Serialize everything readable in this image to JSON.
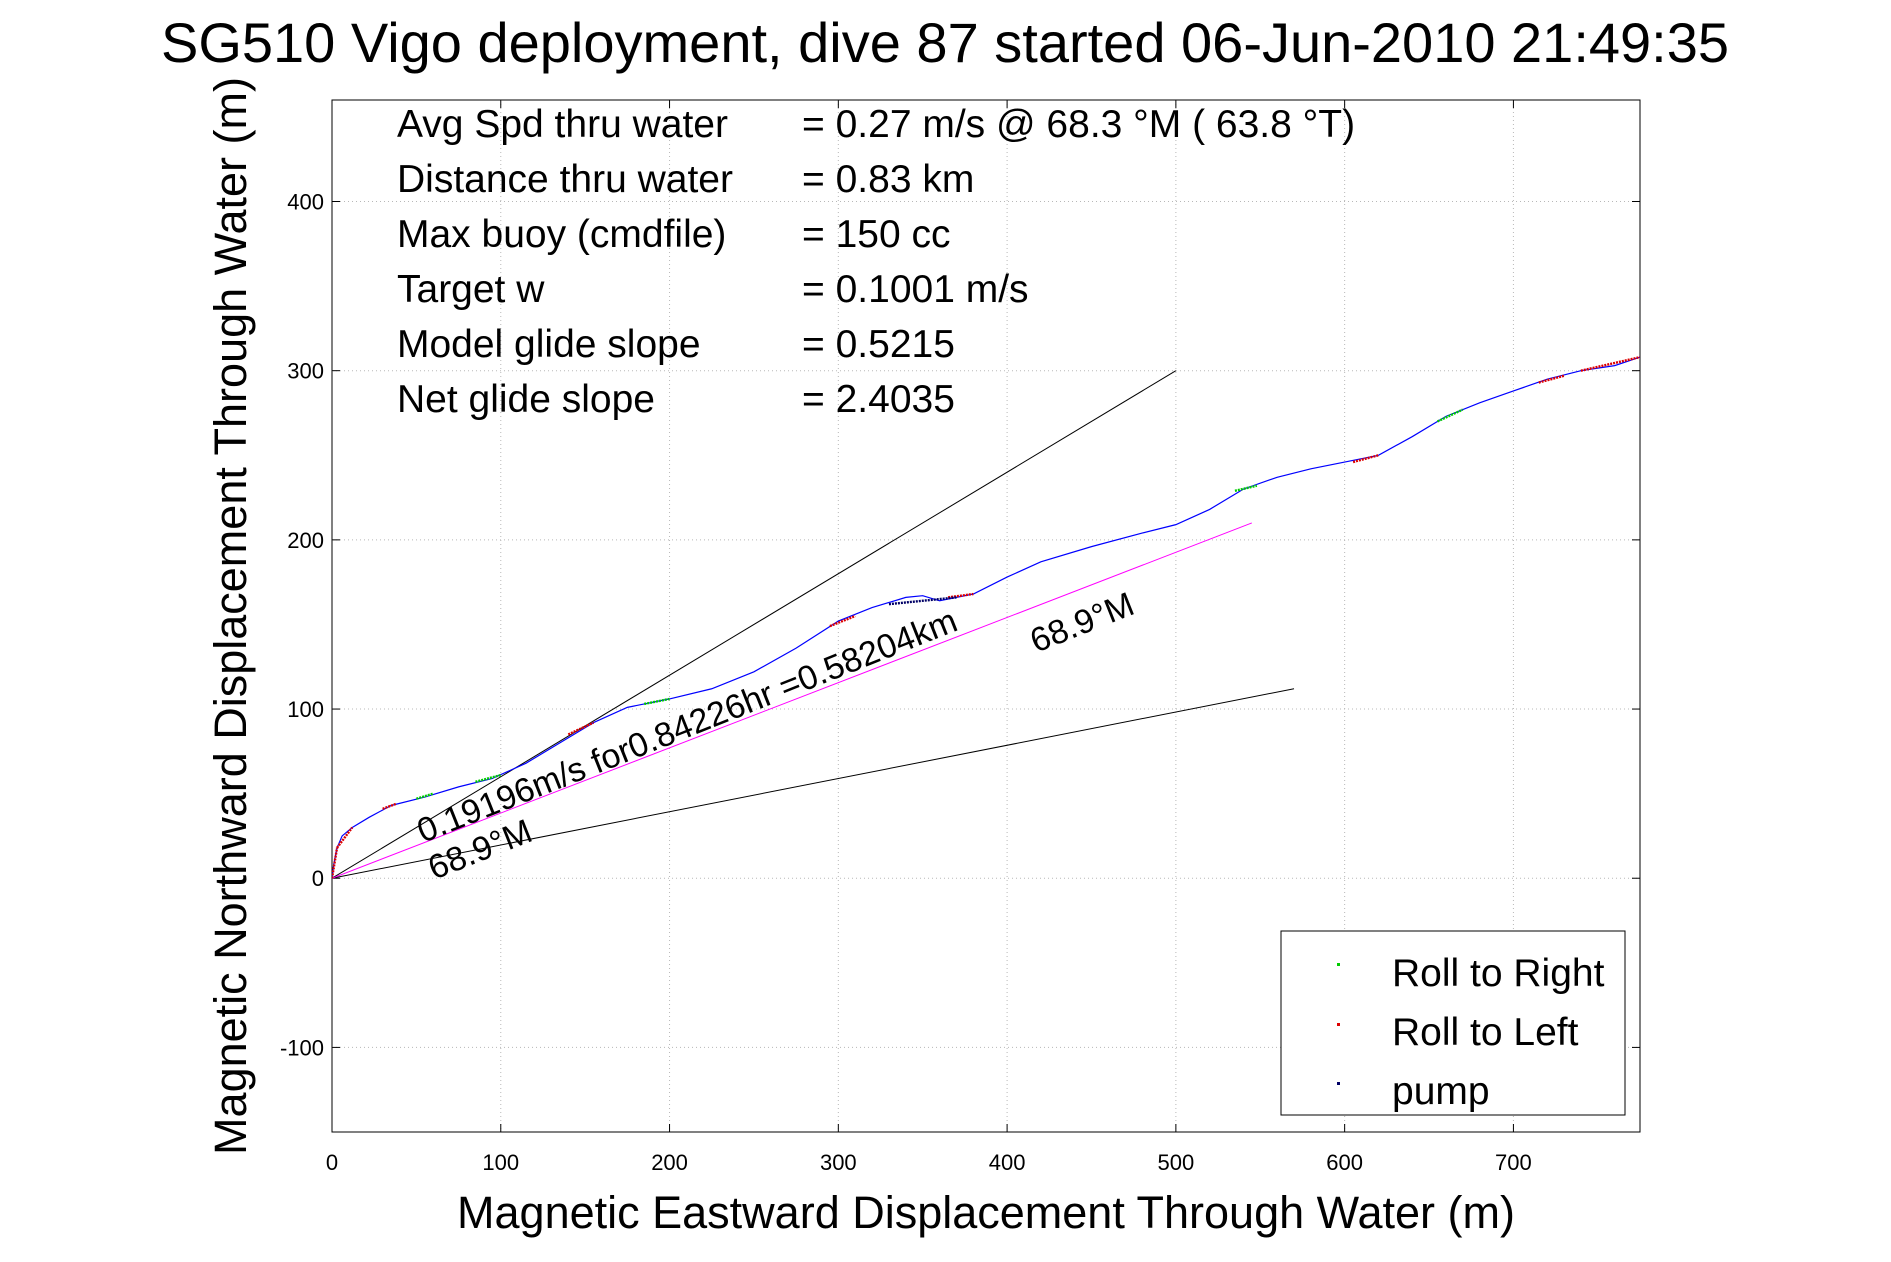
{
  "chart_data": {
    "type": "line",
    "title": "SG510 Vigo deployment, dive 87 started 06-Jun-2010 21:49:35",
    "xlabel": "Magnetic Eastward Displacement Through Water (m)",
    "ylabel": "Magnetic Northward Displacement Through Water (m)",
    "xlim": [
      0,
      775
    ],
    "ylim": [
      -150,
      460
    ],
    "xticks": [
      0,
      100,
      200,
      300,
      400,
      500,
      600,
      700
    ],
    "yticks": [
      -100,
      0,
      100,
      200,
      300,
      400
    ],
    "grid": true,
    "info_lines": [
      {
        "label": "Avg Spd thru water",
        "value": "=  0.27 m/s @  68.3 °M ( 63.8 °T)"
      },
      {
        "label": "Distance thru water",
        "value": "=  0.83 km"
      },
      {
        "label": "Max buoy (cmdfile)",
        "value": "= 150 cc"
      },
      {
        "label": "Target w",
        "value": "= 0.1001 m/s"
      },
      {
        "label": "Model glide slope",
        "value": "= 0.5215"
      },
      {
        "label": "Net glide slope",
        "value": "= 2.4035"
      }
    ],
    "annotations": {
      "current_text": "0.19196m/s for0.84226hr =0.58204km",
      "heading_upper": "68.9°M",
      "heading_lower": "68.9°M"
    },
    "legend": {
      "position": "bottom-right",
      "entries": [
        {
          "label": "Roll to Right",
          "color": "#00cc00"
        },
        {
          "label": "Roll to Left",
          "color": "#dd0000"
        },
        {
          "label": "pump",
          "color": "#000066"
        }
      ]
    },
    "track": {
      "color": "#0000ff",
      "x": [
        0,
        1,
        3,
        6,
        12,
        22,
        35,
        55,
        75,
        95,
        115,
        135,
        155,
        175,
        200,
        225,
        250,
        275,
        300,
        320,
        340,
        350,
        360,
        380,
        400,
        420,
        450,
        480,
        500,
        520,
        540,
        560,
        580,
        600,
        620,
        640,
        660,
        680,
        700,
        720,
        740,
        760,
        775
      ],
      "y": [
        0,
        8,
        18,
        25,
        30,
        36,
        43,
        48,
        54,
        59,
        68,
        80,
        92,
        101,
        106,
        112,
        122,
        136,
        152,
        160,
        166,
        167,
        164,
        168,
        178,
        187,
        196,
        204,
        209,
        218,
        230,
        237,
        242,
        246,
        250,
        261,
        273,
        281,
        288,
        295,
        300,
        303,
        308
      ]
    },
    "roll_right_segments": [
      [
        [
          50,
          47
        ],
        [
          60,
          50
        ]
      ],
      [
        [
          85,
          57
        ],
        [
          100,
          61
        ]
      ],
      [
        [
          185,
          103
        ],
        [
          200,
          106
        ]
      ],
      [
        [
          535,
          229
        ],
        [
          548,
          232
        ]
      ],
      [
        [
          655,
          270
        ],
        [
          670,
          277
        ]
      ]
    ],
    "roll_left_segments": [
      [
        [
          0,
          0
        ],
        [
          3,
          18
        ]
      ],
      [
        [
          3,
          18
        ],
        [
          12,
          30
        ]
      ],
      [
        [
          30,
          41
        ],
        [
          38,
          44
        ]
      ],
      [
        [
          140,
          85
        ],
        [
          155,
          92
        ]
      ],
      [
        [
          295,
          149
        ],
        [
          310,
          155
        ]
      ],
      [
        [
          365,
          166
        ],
        [
          380,
          168
        ]
      ],
      [
        [
          605,
          246
        ],
        [
          620,
          250
        ]
      ],
      [
        [
          715,
          293
        ],
        [
          730,
          297
        ]
      ],
      [
        [
          740,
          300
        ],
        [
          775,
          308
        ]
      ]
    ],
    "pump_segments": [
      [
        [
          330,
          162
        ],
        [
          370,
          166
        ]
      ]
    ],
    "reference_lines": [
      {
        "x": [
          0,
          500
        ],
        "y": [
          0,
          300
        ],
        "color": "#000000"
      },
      {
        "x": [
          0,
          570
        ],
        "y": [
          0,
          112
        ],
        "color": "#000000"
      },
      {
        "x": [
          0,
          545
        ],
        "y": [
          0,
          210
        ],
        "color": "#ff00ff"
      }
    ]
  }
}
